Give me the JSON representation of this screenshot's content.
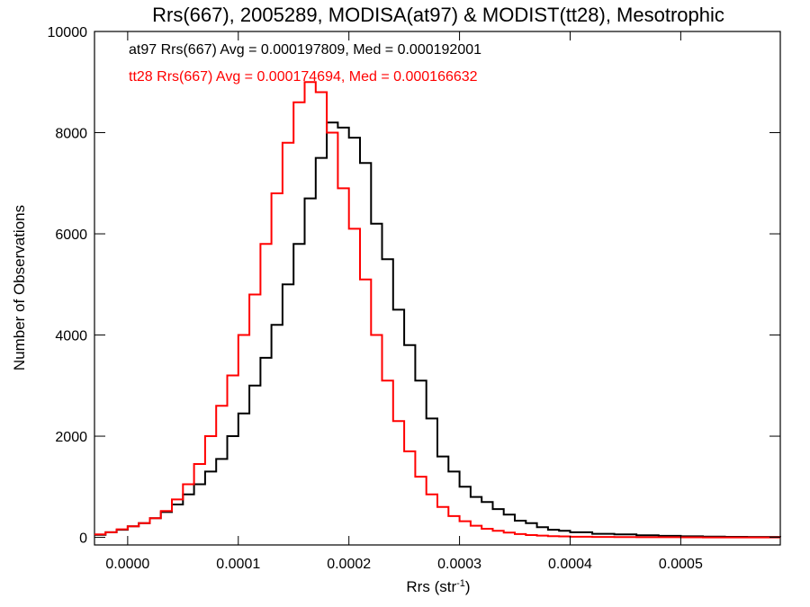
{
  "chart_data": {
    "type": "line",
    "title": "Rrs(667), 2005289, MODISA(at97) & MODIST(tt28), Mesotrophic",
    "xlabel": "Rrs (str",
    "xlabel_sup": "-1",
    "xlabel_end": ")",
    "ylabel": "Number of Observations",
    "xlim": [
      -3e-05,
      0.00059
    ],
    "ylim": [
      -150,
      10000
    ],
    "xticks": [
      0.0,
      0.0001,
      0.0002,
      0.0003,
      0.0004,
      0.0005
    ],
    "xtick_labels": [
      "0.0000",
      "0.0001",
      "0.0002",
      "0.0003",
      "0.0004",
      "0.0005"
    ],
    "yticks": [
      0,
      2000,
      4000,
      6000,
      8000,
      10000
    ],
    "ytick_labels": [
      "0",
      "2000",
      "4000",
      "6000",
      "8000",
      "10000"
    ],
    "grid": false,
    "annotations": [
      {
        "text": "at97 Rrs(667) Avg = 0.000197809, Med = 0.000192001",
        "color": "#000000"
      },
      {
        "text": "tt28 Rrs(667) Avg = 0.000174694, Med = 0.000166632",
        "color": "#ff0000"
      }
    ],
    "series": [
      {
        "color": "#000000",
        "x": [
          -3e-05,
          -2e-05,
          -1e-05,
          0.0,
          1e-05,
          2e-05,
          3e-05,
          4e-05,
          5e-05,
          6e-05,
          7e-05,
          8e-05,
          9e-05,
          0.0001,
          0.00011,
          0.00012,
          0.00013,
          0.00014,
          0.00015,
          0.00016,
          0.00017,
          0.00018,
          0.00019,
          0.0002,
          0.00021,
          0.00022,
          0.00023,
          0.00024,
          0.00025,
          0.00026,
          0.00027,
          0.00028,
          0.00029,
          0.0003,
          0.00031,
          0.00032,
          0.00033,
          0.00034,
          0.00035,
          0.00036,
          0.00037,
          0.00038,
          0.00039,
          0.0004,
          0.00042,
          0.00044,
          0.00046,
          0.00048,
          0.0005,
          0.00052,
          0.00054,
          0.00056,
          0.00059
        ],
        "y": [
          50,
          100,
          150,
          220,
          280,
          380,
          500,
          650,
          850,
          1050,
          1300,
          1550,
          2000,
          2450,
          3000,
          3550,
          4200,
          5000,
          5800,
          6700,
          7500,
          8200,
          8100,
          7900,
          7400,
          6200,
          5500,
          4500,
          3800,
          3100,
          2350,
          1600,
          1300,
          1000,
          800,
          700,
          560,
          450,
          330,
          280,
          200,
          150,
          130,
          100,
          70,
          60,
          40,
          30,
          20,
          15,
          10,
          8,
          5
        ]
      },
      {
        "color": "#ff0000",
        "x": [
          -3e-05,
          -2e-05,
          -1e-05,
          0.0,
          1e-05,
          2e-05,
          3e-05,
          4e-05,
          5e-05,
          6e-05,
          7e-05,
          8e-05,
          9e-05,
          0.0001,
          0.00011,
          0.00012,
          0.00013,
          0.00014,
          0.00015,
          0.00016,
          0.00017,
          0.00018,
          0.00019,
          0.0002,
          0.00021,
          0.00022,
          0.00023,
          0.00024,
          0.00025,
          0.00026,
          0.00027,
          0.00028,
          0.00029,
          0.0003,
          0.00031,
          0.00032,
          0.00033,
          0.00034,
          0.00035,
          0.00036,
          0.00037,
          0.00038,
          0.00039,
          0.0004,
          0.00042,
          0.00044,
          0.00046,
          0.00048,
          0.0005,
          0.00052,
          0.00054,
          0.00056,
          0.00059
        ],
        "y": [
          60,
          100,
          160,
          220,
          280,
          380,
          520,
          750,
          1050,
          1450,
          2000,
          2600,
          3200,
          4000,
          4800,
          5800,
          6800,
          7800,
          8600,
          9000,
          8800,
          8000,
          6900,
          6100,
          5100,
          4000,
          3100,
          2300,
          1700,
          1200,
          850,
          600,
          420,
          320,
          230,
          170,
          130,
          95,
          65,
          45,
          35,
          25,
          18,
          12,
          8,
          5,
          3,
          2,
          1,
          0,
          0,
          0,
          0
        ]
      }
    ]
  }
}
